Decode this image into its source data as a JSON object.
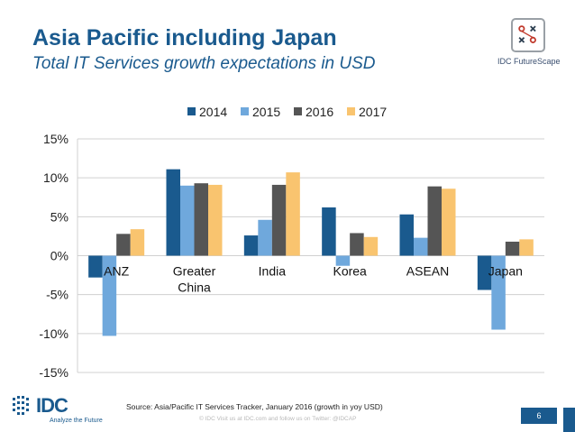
{
  "header": {
    "title": "Asia Pacific including Japan",
    "subtitle": "Total IT Services growth expectations in USD",
    "brand_label": "IDC FutureScape"
  },
  "chart_data": {
    "type": "bar",
    "title": "",
    "xlabel": "",
    "ylabel": "",
    "categories": [
      "ANZ",
      "Greater China",
      "India",
      "Korea",
      "ASEAN",
      "Japan"
    ],
    "series": [
      {
        "name": "2014",
        "color": "#1a5a8e",
        "values": [
          -2.8,
          11.1,
          2.6,
          6.2,
          5.3,
          -4.4
        ]
      },
      {
        "name": "2015",
        "color": "#6fa8dc",
        "values": [
          -10.3,
          9.0,
          4.6,
          -1.3,
          2.3,
          -9.5
        ]
      },
      {
        "name": "2016",
        "color": "#555555",
        "values": [
          2.8,
          9.3,
          9.1,
          2.9,
          8.9,
          1.8
        ]
      },
      {
        "name": "2017",
        "color": "#f9c46f",
        "values": [
          3.4,
          9.1,
          10.7,
          2.4,
          8.6,
          2.1
        ]
      }
    ],
    "ylim": [
      -15,
      15
    ],
    "yticks": [
      -15,
      -10,
      -5,
      0,
      5,
      10,
      15
    ],
    "ytick_labels": [
      "-15%",
      "-10%",
      "-5%",
      "0%",
      "5%",
      "10%",
      "15%"
    ],
    "grid": true,
    "legend_position": "top-center"
  },
  "footer": {
    "source": "Source: Asia/Pacific IT Services Tracker, January 2016 (growth in yoy USD)",
    "copyright": "© IDC    Visit us at IDC.com and follow us on Twitter: @IDCAP",
    "page_number": "6",
    "logo_text": "IDC",
    "tagline": "Analyze the Future"
  },
  "colors": {
    "brand_blue": "#1a5a8e",
    "grid": "#d0d0d0"
  }
}
